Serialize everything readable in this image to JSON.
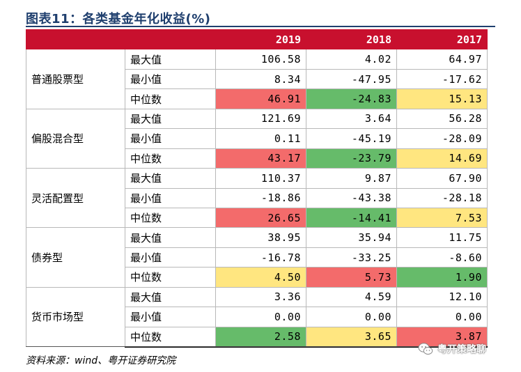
{
  "title": "图表11：各类基金年化收益(%)",
  "header": {
    "blank": "",
    "years": [
      "2019",
      "2018",
      "2017"
    ]
  },
  "groups": [
    {
      "name": "普通股票型",
      "rows": [
        {
          "metric": "最大值",
          "values": [
            "106.58",
            "4.02",
            "64.97"
          ],
          "colors": [
            "",
            "",
            ""
          ]
        },
        {
          "metric": "最小值",
          "values": [
            "8.34",
            "-47.95",
            "-17.62"
          ],
          "colors": [
            "",
            "",
            ""
          ]
        },
        {
          "metric": "中位数",
          "values": [
            "46.91",
            "-24.83",
            "15.13"
          ],
          "colors": [
            "#f36b6b",
            "#66bb6a",
            "#ffe680"
          ]
        }
      ]
    },
    {
      "name": "偏股混合型",
      "rows": [
        {
          "metric": "最大值",
          "values": [
            "121.69",
            "3.64",
            "56.28"
          ],
          "colors": [
            "",
            "",
            ""
          ]
        },
        {
          "metric": "最小值",
          "values": [
            "0.11",
            "-45.19",
            "-28.09"
          ],
          "colors": [
            "",
            "",
            ""
          ]
        },
        {
          "metric": "中位数",
          "values": [
            "43.17",
            "-23.79",
            "14.69"
          ],
          "colors": [
            "#f36b6b",
            "#66bb6a",
            "#ffe680"
          ]
        }
      ]
    },
    {
      "name": "灵活配置型",
      "rows": [
        {
          "metric": "最大值",
          "values": [
            "110.37",
            "9.87",
            "67.90"
          ],
          "colors": [
            "",
            "",
            ""
          ]
        },
        {
          "metric": "最小值",
          "values": [
            "-18.86",
            "-43.38",
            "-28.18"
          ],
          "colors": [
            "",
            "",
            ""
          ]
        },
        {
          "metric": "中位数",
          "values": [
            "26.65",
            "-14.41",
            "7.53"
          ],
          "colors": [
            "#f36b6b",
            "#66bb6a",
            "#ffe680"
          ]
        }
      ]
    },
    {
      "name": "债券型",
      "rows": [
        {
          "metric": "最大值",
          "values": [
            "38.95",
            "35.94",
            "11.75"
          ],
          "colors": [
            "",
            "",
            ""
          ]
        },
        {
          "metric": "最小值",
          "values": [
            "-16.78",
            "-33.25",
            "-8.60"
          ],
          "colors": [
            "",
            "",
            ""
          ]
        },
        {
          "metric": "中位数",
          "values": [
            "4.50",
            "5.73",
            "1.90"
          ],
          "colors": [
            "#ffe680",
            "#f36b6b",
            "#66bb6a"
          ]
        }
      ]
    },
    {
      "name": "货币市场型",
      "rows": [
        {
          "metric": "最大值",
          "values": [
            "3.36",
            "4.59",
            "12.10"
          ],
          "colors": [
            "",
            "",
            ""
          ]
        },
        {
          "metric": "最小值",
          "values": [
            "0.00",
            "0.00",
            "0.00"
          ],
          "colors": [
            "",
            "",
            ""
          ]
        },
        {
          "metric": "中位数",
          "values": [
            "2.58",
            "3.65",
            "3.87"
          ],
          "colors": [
            "#66bb6a",
            "#ffe680",
            "#f36b6b"
          ]
        }
      ]
    }
  ],
  "source": "资料来源：wind、粤开证券研究院",
  "watermark": {
    "text": "粤开策略聊",
    "icon": "wechat-icon"
  },
  "colors": {
    "header_bg": "#c8102e",
    "title": "#1f3f6e",
    "high": "#f36b6b",
    "low": "#66bb6a",
    "mid": "#ffe680"
  }
}
